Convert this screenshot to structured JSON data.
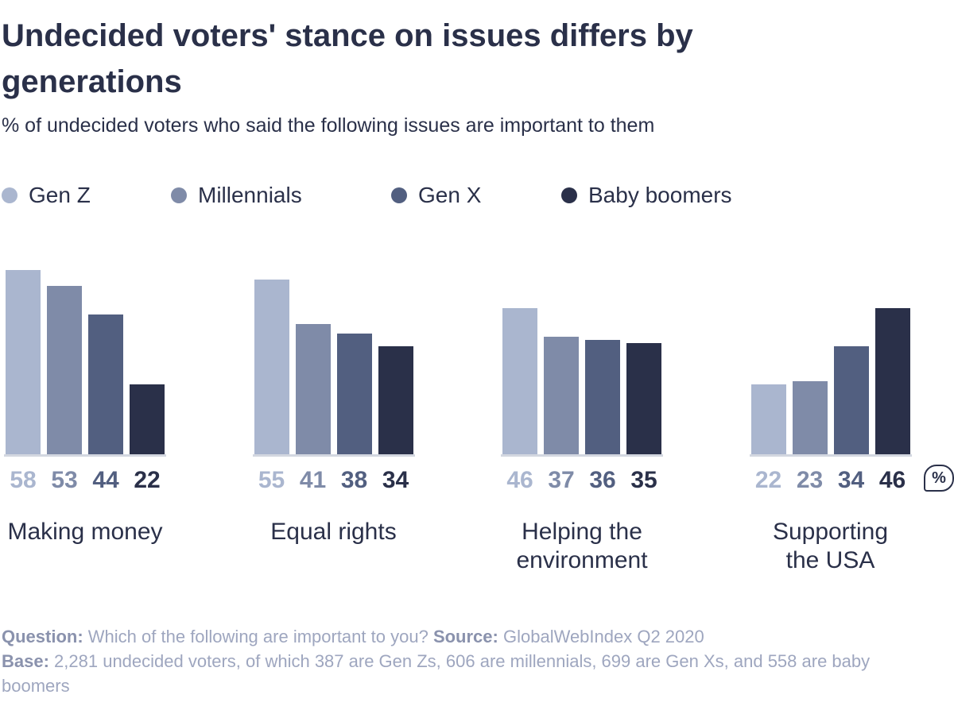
{
  "chart_data": {
    "type": "bar",
    "title": "Undecided voters' stance on issues differs by generations",
    "subtitle": "% of undecided voters who said the following issues are important to them",
    "categories": [
      "Making money",
      "Equal rights",
      "Helping the\nenvironment",
      "Supporting\nthe USA"
    ],
    "series": [
      {
        "name": "Gen Z",
        "color": "#aab6cf",
        "values": [
          58,
          55,
          46,
          22
        ]
      },
      {
        "name": "Millennials",
        "color": "#7f8ba8",
        "values": [
          53,
          41,
          37,
          23
        ]
      },
      {
        "name": "Gen X",
        "color": "#525f80",
        "values": [
          44,
          38,
          36,
          34
        ]
      },
      {
        "name": "Baby boomers",
        "color": "#2a3049",
        "values": [
          22,
          34,
          35,
          46
        ]
      }
    ],
    "unit_badge": "%",
    "footer": {
      "question_label": "Question:",
      "question": "Which of the following are important to you?",
      "source_label": "Source:",
      "source": "GlobalWebIndex Q2 2020",
      "base_label": "Base:",
      "base": "2,281 undecided voters, of which 387 are Gen Zs, 606 are millennials, 699 are Gen Xs, and 558 are baby boomers"
    }
  }
}
